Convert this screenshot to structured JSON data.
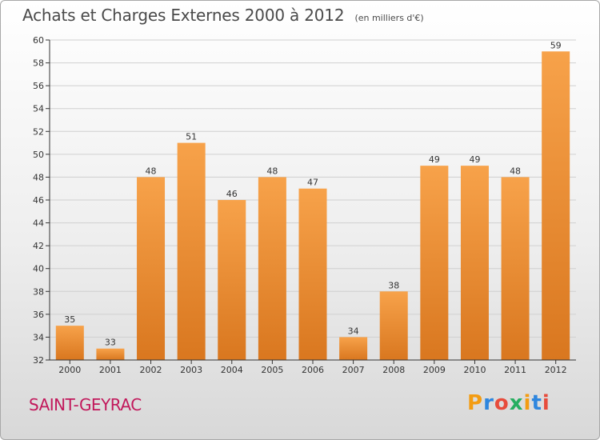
{
  "header": {
    "title": "Achats et Charges Externes 2000 à 2012",
    "subtitle": "(en milliers d'€)"
  },
  "footer": {
    "commune": "SAINT-GEYRAC",
    "brand_letters": [
      "P",
      "r",
      "o",
      "x",
      "i",
      "t",
      "i"
    ],
    "brand_colors": [
      "#f39c12",
      "#2e86de",
      "#e74c3c",
      "#27ae60",
      "#f39c12",
      "#2e86de",
      "#e74c3c"
    ]
  },
  "colors": {
    "bar_light": "#f7a24a",
    "bar_dark": "#d9771f",
    "axis": "#333333",
    "grid": "#d0d0d0"
  },
  "chart_data": {
    "type": "bar",
    "categories": [
      "2000",
      "2001",
      "2002",
      "2003",
      "2004",
      "2005",
      "2006",
      "2007",
      "2008",
      "2009",
      "2010",
      "2011",
      "2012"
    ],
    "values": [
      35,
      33,
      48,
      51,
      46,
      48,
      47,
      34,
      38,
      49,
      49,
      48,
      59
    ],
    "title": "Achats et Charges Externes 2000 à 2012",
    "subtitle": "(en milliers d'€)",
    "ylim": [
      32,
      60
    ],
    "yticks": [
      32,
      34,
      36,
      38,
      40,
      42,
      44,
      46,
      48,
      50,
      52,
      54,
      56,
      58,
      60
    ],
    "grid": true
  }
}
